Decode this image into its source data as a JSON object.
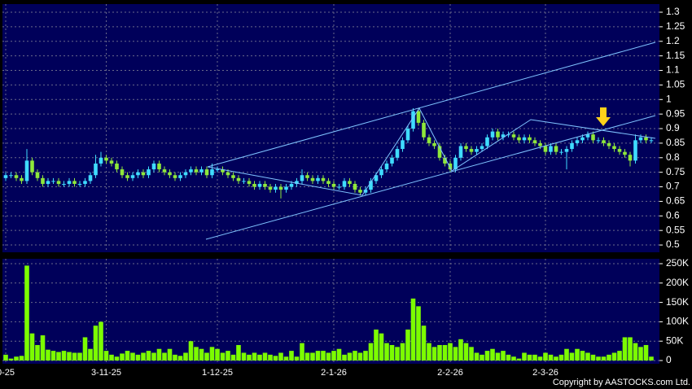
{
  "chart_data": [
    {
      "type": "candlestick",
      "up_color": "#3fdcff",
      "down_color": "#8fe83a",
      "open": [
        0.73,
        0.74,
        0.74,
        0.73,
        0.72,
        0.79,
        0.75,
        0.73,
        0.71,
        0.72,
        0.72,
        0.71,
        0.71,
        0.72,
        0.71,
        0.71,
        0.72,
        0.74,
        0.78,
        0.8,
        0.79,
        0.78,
        0.76,
        0.74,
        0.73,
        0.74,
        0.75,
        0.74,
        0.76,
        0.78,
        0.76,
        0.75,
        0.74,
        0.73,
        0.74,
        0.75,
        0.76,
        0.75,
        0.76,
        0.74,
        0.76,
        0.76,
        0.75,
        0.74,
        0.73,
        0.72,
        0.72,
        0.71,
        0.7,
        0.71,
        0.7,
        0.69,
        0.7,
        0.69,
        0.7,
        0.71,
        0.72,
        0.74,
        0.73,
        0.72,
        0.73,
        0.72,
        0.71,
        0.7,
        0.7,
        0.72,
        0.71,
        0.69,
        0.68,
        0.69,
        0.72,
        0.74,
        0.76,
        0.78,
        0.8,
        0.83,
        0.86,
        0.9,
        0.96,
        0.92,
        0.87,
        0.85,
        0.84,
        0.8,
        0.78,
        0.76,
        0.8,
        0.84,
        0.83,
        0.82,
        0.83,
        0.84,
        0.87,
        0.89,
        0.87,
        0.88,
        0.88,
        0.87,
        0.86,
        0.87,
        0.86,
        0.85,
        0.84,
        0.82,
        0.84,
        0.82,
        0.82,
        0.83,
        0.85,
        0.86,
        0.87,
        0.88,
        0.86,
        0.86,
        0.85,
        0.84,
        0.83,
        0.82,
        0.81,
        0.79,
        0.86,
        0.87,
        0.86
      ],
      "high": [
        0.75,
        0.75,
        0.75,
        0.74,
        0.83,
        0.8,
        0.76,
        0.74,
        0.73,
        0.73,
        0.73,
        0.72,
        0.73,
        0.73,
        0.72,
        0.73,
        0.75,
        0.81,
        0.82,
        0.81,
        0.8,
        0.79,
        0.77,
        0.75,
        0.75,
        0.76,
        0.76,
        0.77,
        0.79,
        0.79,
        0.77,
        0.76,
        0.75,
        0.75,
        0.76,
        0.77,
        0.77,
        0.77,
        0.77,
        0.78,
        0.77,
        0.77,
        0.76,
        0.75,
        0.74,
        0.73,
        0.73,
        0.72,
        0.72,
        0.72,
        0.71,
        0.71,
        0.71,
        0.71,
        0.72,
        0.73,
        0.76,
        0.75,
        0.74,
        0.74,
        0.74,
        0.73,
        0.72,
        0.71,
        0.73,
        0.73,
        0.72,
        0.7,
        0.7,
        0.73,
        0.75,
        0.77,
        0.79,
        0.81,
        0.84,
        0.87,
        0.91,
        0.97,
        0.97,
        0.93,
        0.88,
        0.86,
        0.85,
        0.81,
        0.79,
        0.81,
        0.85,
        0.85,
        0.84,
        0.84,
        0.85,
        0.88,
        0.9,
        0.9,
        0.89,
        0.89,
        0.89,
        0.88,
        0.88,
        0.88,
        0.87,
        0.86,
        0.85,
        0.85,
        0.85,
        0.83,
        0.84,
        0.86,
        0.87,
        0.88,
        0.89,
        0.89,
        0.87,
        0.87,
        0.86,
        0.85,
        0.84,
        0.83,
        0.82,
        0.88,
        0.88,
        0.88,
        0.87
      ],
      "low": [
        0.72,
        0.73,
        0.72,
        0.71,
        0.71,
        0.74,
        0.72,
        0.7,
        0.7,
        0.71,
        0.7,
        0.7,
        0.7,
        0.7,
        0.7,
        0.7,
        0.71,
        0.73,
        0.77,
        0.78,
        0.77,
        0.75,
        0.73,
        0.72,
        0.72,
        0.73,
        0.73,
        0.73,
        0.75,
        0.75,
        0.74,
        0.73,
        0.72,
        0.72,
        0.73,
        0.74,
        0.74,
        0.74,
        0.73,
        0.73,
        0.75,
        0.74,
        0.73,
        0.72,
        0.71,
        0.71,
        0.7,
        0.69,
        0.69,
        0.69,
        0.68,
        0.68,
        0.66,
        0.68,
        0.69,
        0.7,
        0.71,
        0.72,
        0.71,
        0.71,
        0.71,
        0.7,
        0.69,
        0.69,
        0.69,
        0.7,
        0.68,
        0.67,
        0.67,
        0.68,
        0.71,
        0.73,
        0.75,
        0.77,
        0.79,
        0.82,
        0.85,
        0.89,
        0.91,
        0.86,
        0.84,
        0.83,
        0.79,
        0.77,
        0.75,
        0.75,
        0.79,
        0.82,
        0.81,
        0.81,
        0.82,
        0.83,
        0.86,
        0.86,
        0.86,
        0.87,
        0.86,
        0.85,
        0.85,
        0.85,
        0.84,
        0.83,
        0.81,
        0.81,
        0.81,
        0.81,
        0.76,
        0.82,
        0.84,
        0.85,
        0.86,
        0.85,
        0.85,
        0.84,
        0.83,
        0.82,
        0.81,
        0.8,
        0.77,
        0.78,
        0.85,
        0.85,
        0.85
      ],
      "close": [
        0.74,
        0.74,
        0.73,
        0.72,
        0.79,
        0.75,
        0.73,
        0.71,
        0.72,
        0.72,
        0.71,
        0.71,
        0.72,
        0.71,
        0.71,
        0.72,
        0.74,
        0.78,
        0.8,
        0.79,
        0.78,
        0.76,
        0.74,
        0.73,
        0.74,
        0.75,
        0.74,
        0.76,
        0.78,
        0.76,
        0.75,
        0.74,
        0.73,
        0.74,
        0.75,
        0.76,
        0.75,
        0.76,
        0.74,
        0.76,
        0.76,
        0.75,
        0.74,
        0.73,
        0.72,
        0.72,
        0.71,
        0.7,
        0.71,
        0.7,
        0.69,
        0.7,
        0.69,
        0.7,
        0.71,
        0.72,
        0.74,
        0.73,
        0.72,
        0.73,
        0.72,
        0.71,
        0.7,
        0.7,
        0.72,
        0.71,
        0.69,
        0.68,
        0.69,
        0.72,
        0.74,
        0.76,
        0.78,
        0.8,
        0.83,
        0.86,
        0.9,
        0.96,
        0.92,
        0.87,
        0.85,
        0.84,
        0.8,
        0.78,
        0.76,
        0.8,
        0.84,
        0.83,
        0.82,
        0.83,
        0.84,
        0.87,
        0.89,
        0.87,
        0.88,
        0.88,
        0.87,
        0.86,
        0.87,
        0.86,
        0.85,
        0.84,
        0.82,
        0.84,
        0.82,
        0.82,
        0.83,
        0.85,
        0.86,
        0.87,
        0.88,
        0.86,
        0.86,
        0.85,
        0.84,
        0.83,
        0.82,
        0.81,
        0.79,
        0.86,
        0.87,
        0.86,
        0.86
      ],
      "ylim": [
        0.475,
        1.328
      ],
      "yticks": [
        0.5,
        0.55,
        0.6,
        0.65,
        0.7,
        0.75,
        0.8,
        0.85,
        0.9,
        0.95,
        1,
        1.05,
        1.1,
        1.15,
        1.2,
        1.25,
        1.3
      ],
      "grid": true
    },
    {
      "type": "bar",
      "color": "#7cfc00",
      "categories": [
        "0-25",
        null,
        null,
        null,
        null,
        null,
        null,
        null,
        null,
        null,
        null,
        null,
        null,
        null,
        null,
        null,
        null,
        null,
        null,
        "3-11-25",
        null,
        null,
        null,
        null,
        null,
        null,
        null,
        null,
        null,
        null,
        null,
        null,
        null,
        null,
        null,
        null,
        null,
        null,
        null,
        null,
        "1-12-25",
        null,
        null,
        null,
        null,
        null,
        null,
        null,
        null,
        null,
        null,
        null,
        null,
        null,
        null,
        null,
        null,
        null,
        null,
        null,
        null,
        null,
        "2-1-26",
        null,
        null,
        null,
        null,
        null,
        null,
        null,
        null,
        null,
        null,
        null,
        null,
        null,
        null,
        null,
        null,
        null,
        null,
        null,
        null,
        null,
        "2-2-26",
        null,
        null,
        null,
        null,
        null,
        null,
        null,
        null,
        null,
        null,
        null,
        null,
        null,
        null,
        null,
        null,
        null,
        "2-3-26",
        null,
        null,
        null,
        null,
        null,
        null,
        null,
        null,
        null,
        null,
        null,
        null,
        null,
        null,
        null,
        null,
        null,
        null,
        null,
        null
      ],
      "values": [
        15000,
        5000,
        10000,
        12000,
        245000,
        70000,
        40000,
        65000,
        28000,
        25000,
        22000,
        25000,
        22000,
        20000,
        20000,
        60000,
        30000,
        90000,
        100000,
        25000,
        15000,
        10000,
        18000,
        25000,
        20000,
        15000,
        20000,
        25000,
        20000,
        30000,
        20000,
        30000,
        15000,
        12000,
        20000,
        50000,
        35000,
        30000,
        20000,
        35000,
        30000,
        20000,
        25000,
        15000,
        40000,
        20000,
        15000,
        20000,
        15000,
        20000,
        15000,
        12000,
        20000,
        10000,
        25000,
        10000,
        45000,
        20000,
        20000,
        25000,
        25000,
        20000,
        25000,
        30000,
        15000,
        20000,
        25000,
        20000,
        25000,
        45000,
        80000,
        70000,
        45000,
        40000,
        35000,
        45000,
        80000,
        160000,
        140000,
        90000,
        45000,
        35000,
        40000,
        40000,
        45000,
        35000,
        55000,
        45000,
        35000,
        20000,
        15000,
        25000,
        30000,
        20000,
        25000,
        15000,
        10000,
        5000,
        20000,
        15000,
        15000,
        10000,
        20000,
        15000,
        10000,
        15000,
        30000,
        20000,
        30000,
        25000,
        20000,
        15000,
        10000,
        10000,
        15000,
        20000,
        25000,
        60000,
        60000,
        45000,
        35000,
        40000,
        10000
      ],
      "ylim": [
        0,
        262600
      ],
      "yticks": [
        0,
        {
          "value": 50000,
          "label": "50K"
        },
        {
          "value": 100000,
          "label": "100K"
        },
        {
          "value": 150000,
          "label": "150K"
        },
        {
          "value": 200000,
          "label": "200K"
        },
        {
          "value": 250000,
          "label": "250K"
        }
      ],
      "grid": true
    }
  ],
  "copyright": "Copyright by AASTOCKS.com Ltd."
}
